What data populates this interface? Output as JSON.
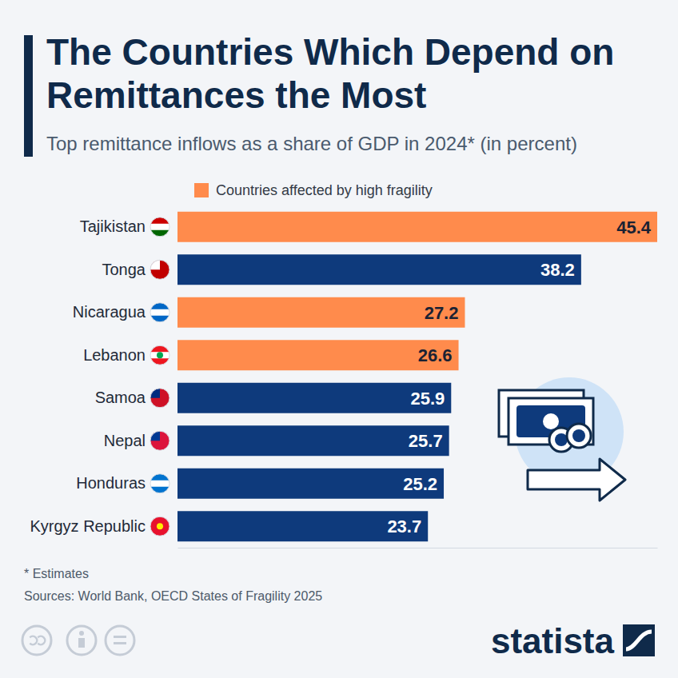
{
  "chart_data": {
    "type": "bar",
    "orientation": "horizontal",
    "stacked": true,
    "title": "The Countries Which Depend on Remittances the Most",
    "subtitle": "Top remittance inflows as a share of GDP in 2024* (in percent)",
    "categories": [
      "Tajikistan",
      "Tonga",
      "Nicaragua",
      "Lebanon",
      "Samoa",
      "Nepal",
      "Honduras",
      "Kyrgyz Republic"
    ],
    "series": [
      {
        "name": "Countries affected by high fragility",
        "color": "#ff8b4c",
        "values": [
          45.4,
          null,
          27.2,
          26.6,
          null,
          null,
          null,
          null
        ]
      },
      {
        "color": "#0e3a7c",
        "values": [
          null,
          38.2,
          null,
          null,
          25.9,
          25.7,
          25.2,
          23.7
        ]
      }
    ],
    "xlim": [
      0,
      45.4
    ],
    "data_labels": true,
    "tick_labels": "y",
    "legend": "top",
    "annotations": [
      "* Estimates",
      "Sources: World Bank, OECD States of Fragility 2025",
      "statista"
    ]
  }
}
